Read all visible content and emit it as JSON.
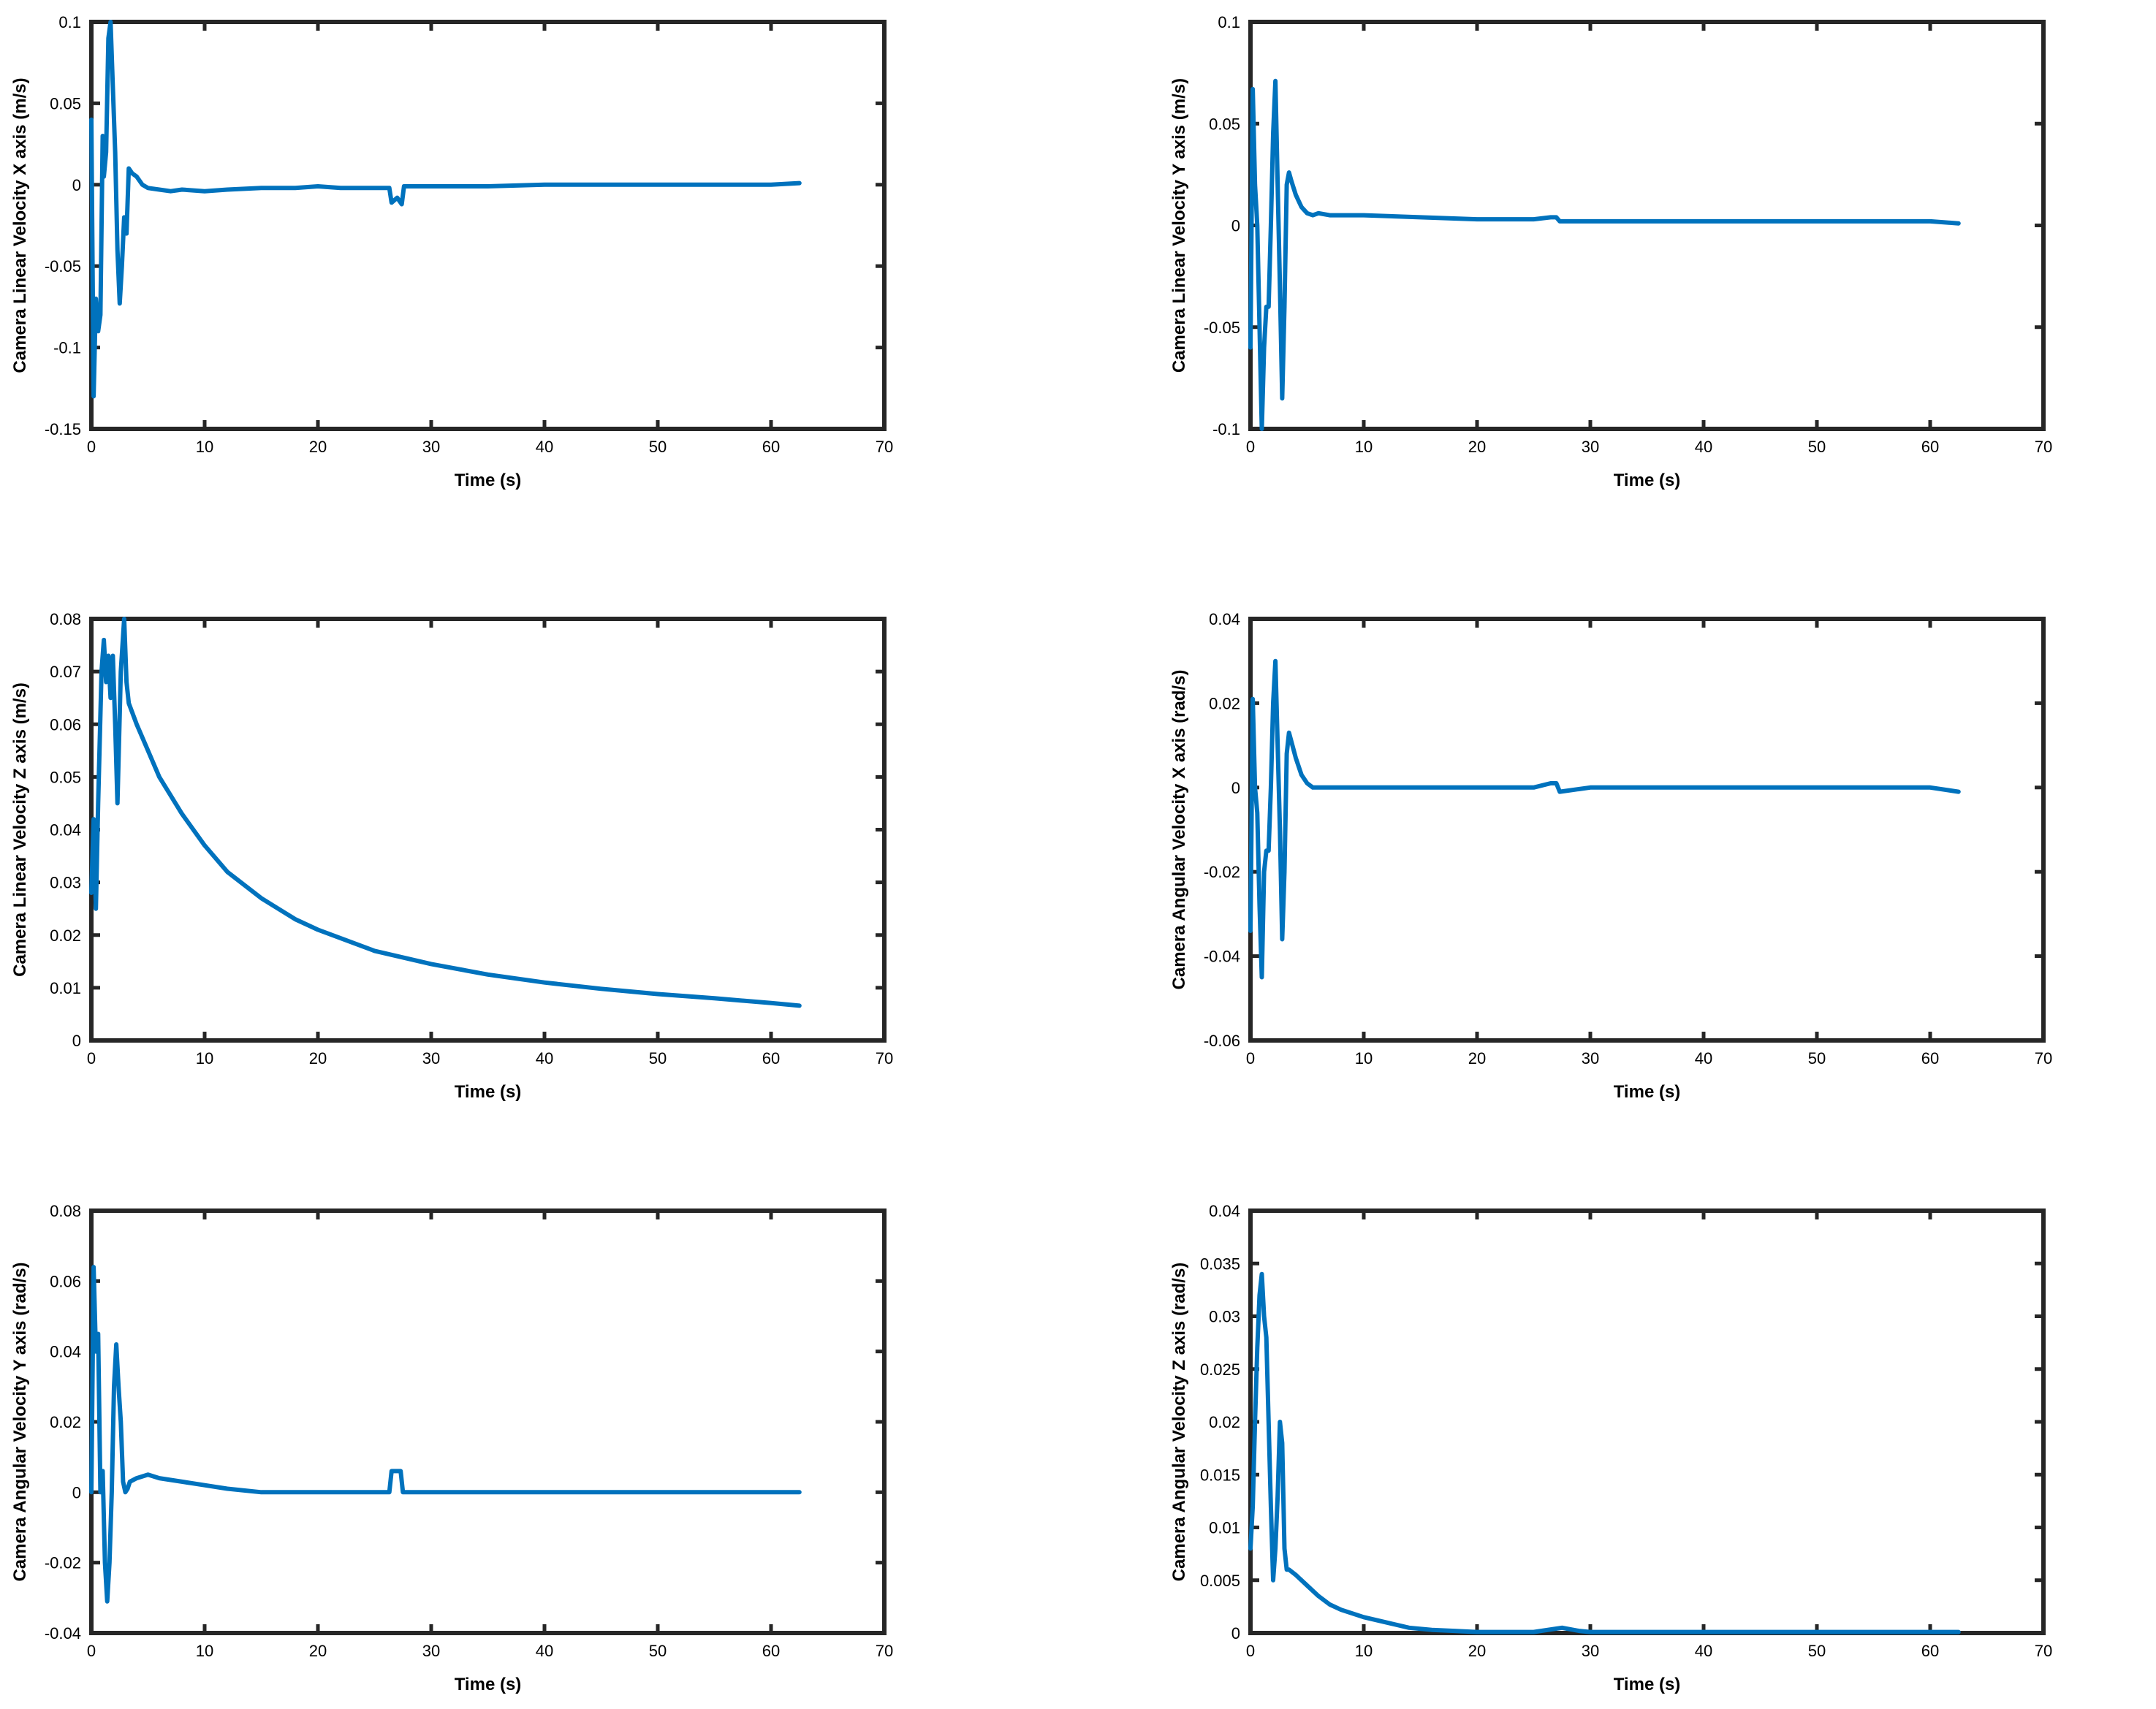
{
  "chart_data": [
    {
      "type": "line",
      "xlabel": "Time (s)",
      "ylabel": "Camera Linear Velocity X axis  (m/s)",
      "xlim": [
        0,
        70
      ],
      "ylim": [
        -0.15,
        0.1
      ],
      "xticks": [
        0,
        10,
        20,
        30,
        40,
        50,
        60,
        70
      ],
      "xtick_labels": [
        "0",
        "10",
        "20",
        "30",
        "40",
        "50",
        "60",
        "70"
      ],
      "yticks": [
        -0.15,
        -0.1,
        -0.05,
        0,
        0.05,
        0.1
      ],
      "ytick_labels": [
        "-0.15",
        "-0.1",
        "-0.05",
        "0",
        "0.05",
        "0.1"
      ],
      "grid": false,
      "color": "#0072BD",
      "series": [
        {
          "x": [
            0,
            0.2,
            0.4,
            0.6,
            0.8,
            1.0,
            1.1,
            1.3,
            1.5,
            1.7,
            1.9,
            2.1,
            2.3,
            2.5,
            2.7,
            2.9,
            3.1,
            3.3,
            3.6,
            4,
            4.5,
            5,
            6,
            7,
            8,
            10,
            12,
            15,
            18,
            20,
            22,
            25,
            26.3,
            26.5,
            27,
            27.4,
            27.6,
            30,
            35,
            40,
            45,
            50,
            55,
            60,
            62.5
          ],
          "y": [
            0.04,
            -0.13,
            -0.07,
            -0.09,
            -0.08,
            0.03,
            0.005,
            0.02,
            0.09,
            0.1,
            0.06,
            0.02,
            -0.04,
            -0.073,
            -0.05,
            -0.02,
            -0.03,
            0.01,
            0.007,
            0.005,
            0.0,
            -0.002,
            -0.003,
            -0.004,
            -0.003,
            -0.004,
            -0.003,
            -0.002,
            -0.002,
            -0.001,
            -0.002,
            -0.002,
            -0.002,
            -0.011,
            -0.008,
            -0.012,
            -0.001,
            -0.001,
            -0.001,
            0.0,
            0.0,
            0.0,
            0.0,
            0.0,
            0.001
          ]
        }
      ]
    },
    {
      "type": "line",
      "xlabel": "Time (s)",
      "ylabel": "Camera Linear Velocity Y axis (m/s)",
      "xlim": [
        0,
        70
      ],
      "ylim": [
        -0.1,
        0.1
      ],
      "xticks": [
        0,
        10,
        20,
        30,
        40,
        50,
        60,
        70
      ],
      "xtick_labels": [
        "0",
        "10",
        "20",
        "30",
        "40",
        "50",
        "60",
        "70"
      ],
      "yticks": [
        -0.1,
        -0.05,
        0,
        0.05,
        0.1
      ],
      "ytick_labels": [
        "-0.1",
        "-0.05",
        "0",
        "0.05",
        "0.1"
      ],
      "grid": false,
      "color": "#0072BD",
      "series": [
        {
          "x": [
            0,
            0.2,
            0.4,
            0.6,
            0.8,
            1.0,
            1.2,
            1.4,
            1.6,
            1.8,
            2.0,
            2.2,
            2.4,
            2.6,
            2.8,
            3.0,
            3.2,
            3.4,
            3.6,
            4.0,
            4.5,
            5.0,
            5.5,
            6,
            7,
            8,
            10,
            15,
            20,
            25,
            26.5,
            27,
            27.3,
            30,
            35,
            40,
            45,
            50,
            55,
            60,
            62.5
          ],
          "y": [
            -0.06,
            0.067,
            0.02,
            0.0,
            -0.05,
            -0.1,
            -0.06,
            -0.04,
            -0.04,
            0.0,
            0.045,
            0.071,
            0.02,
            -0.03,
            -0.085,
            -0.04,
            0.02,
            0.026,
            0.022,
            0.015,
            0.009,
            0.006,
            0.005,
            0.006,
            0.005,
            0.005,
            0.005,
            0.004,
            0.003,
            0.003,
            0.004,
            0.004,
            0.002,
            0.002,
            0.002,
            0.002,
            0.002,
            0.002,
            0.002,
            0.002,
            0.001
          ]
        }
      ]
    },
    {
      "type": "line",
      "xlabel": "Time (s)",
      "ylabel": "Camera Linear Velocity Z axis (m/s)",
      "xlim": [
        0,
        70
      ],
      "ylim": [
        0,
        0.08
      ],
      "xticks": [
        0,
        10,
        20,
        30,
        40,
        50,
        60,
        70
      ],
      "xtick_labels": [
        "0",
        "10",
        "20",
        "30",
        "40",
        "50",
        "60",
        "70"
      ],
      "yticks": [
        0,
        0.01,
        0.02,
        0.03,
        0.04,
        0.05,
        0.06,
        0.07,
        0.08
      ],
      "ytick_labels": [
        "0",
        "0.01",
        "0.02",
        "0.03",
        "0.04",
        "0.05",
        "0.06",
        "0.07",
        "0.08"
      ],
      "grid": false,
      "color": "#0072BD",
      "series": [
        {
          "x": [
            0,
            0.2,
            0.4,
            0.6,
            0.9,
            1.1,
            1.3,
            1.5,
            1.7,
            1.9,
            2.1,
            2.3,
            2.6,
            2.9,
            3.1,
            3.3,
            4,
            5,
            6,
            8,
            10,
            12,
            15,
            18,
            20,
            25,
            30,
            35,
            40,
            45,
            50,
            55,
            60,
            62.5
          ],
          "y": [
            0.028,
            0.042,
            0.025,
            0.045,
            0.07,
            0.076,
            0.068,
            0.073,
            0.065,
            0.073,
            0.06,
            0.045,
            0.07,
            0.08,
            0.068,
            0.064,
            0.06,
            0.055,
            0.05,
            0.043,
            0.037,
            0.032,
            0.027,
            0.023,
            0.021,
            0.017,
            0.0145,
            0.0125,
            0.011,
            0.0098,
            0.0088,
            0.008,
            0.0071,
            0.0066
          ]
        }
      ]
    },
    {
      "type": "line",
      "xlabel": "Time (s)",
      "ylabel": "Camera Angular Velocity X axis (rad/s)",
      "xlim": [
        0,
        70
      ],
      "ylim": [
        -0.06,
        0.04
      ],
      "xticks": [
        0,
        10,
        20,
        30,
        40,
        50,
        60,
        70
      ],
      "xtick_labels": [
        "0",
        "10",
        "20",
        "30",
        "40",
        "50",
        "60",
        "70"
      ],
      "yticks": [
        -0.06,
        -0.04,
        -0.02,
        0,
        0.02,
        0.04
      ],
      "ytick_labels": [
        "-0.06",
        "-0.04",
        "-0.02",
        "0",
        "0.02",
        "0.04"
      ],
      "grid": false,
      "color": "#0072BD",
      "series": [
        {
          "x": [
            0,
            0.2,
            0.4,
            0.6,
            0.8,
            1.0,
            1.2,
            1.4,
            1.6,
            1.8,
            2.0,
            2.2,
            2.4,
            2.6,
            2.8,
            3.0,
            3.2,
            3.4,
            3.6,
            4.0,
            4.5,
            5.0,
            5.5,
            6,
            8,
            10,
            15,
            20,
            25,
            26.5,
            27,
            27.3,
            30,
            35,
            40,
            45,
            50,
            55,
            60,
            62.5
          ],
          "y": [
            -0.034,
            0.021,
            0.0,
            -0.006,
            -0.028,
            -0.045,
            -0.02,
            -0.015,
            -0.015,
            0.0,
            0.02,
            0.03,
            0.01,
            -0.01,
            -0.036,
            -0.02,
            0.008,
            0.013,
            0.011,
            0.007,
            0.003,
            0.001,
            0.0,
            0.0,
            0.0,
            0.0,
            0.0,
            0.0,
            0.0,
            0.001,
            0.001,
            -0.001,
            0.0,
            0.0,
            0.0,
            0.0,
            0.0,
            0.0,
            0.0,
            -0.001
          ]
        }
      ]
    },
    {
      "type": "line",
      "xlabel": "Time (s)",
      "ylabel": "Camera Angular Velocity Y axis (rad/s)",
      "xlim": [
        0,
        70
      ],
      "ylim": [
        -0.04,
        0.08
      ],
      "xticks": [
        0,
        10,
        20,
        30,
        40,
        50,
        60,
        70
      ],
      "xtick_labels": [
        "0",
        "10",
        "20",
        "30",
        "40",
        "50",
        "60",
        "70"
      ],
      "yticks": [
        -0.04,
        -0.02,
        0,
        0.02,
        0.04,
        0.06,
        0.08
      ],
      "ytick_labels": [
        "-0.04",
        "-0.02",
        "0",
        "0.02",
        "0.04",
        "0.06",
        "0.08"
      ],
      "grid": false,
      "color": "#0072BD",
      "series": [
        {
          "x": [
            0,
            0.2,
            0.4,
            0.6,
            0.8,
            1.0,
            1.2,
            1.4,
            1.6,
            1.8,
            2.0,
            2.2,
            2.4,
            2.6,
            2.8,
            3.0,
            3.2,
            3.4,
            4,
            5,
            6,
            8,
            10,
            12,
            15,
            18,
            20,
            25,
            26.3,
            26.5,
            27.3,
            27.5,
            30,
            35,
            40,
            45,
            50,
            55,
            60,
            62.5
          ],
          "y": [
            0.0,
            0.064,
            0.04,
            0.045,
            0.0,
            0.006,
            -0.02,
            -0.031,
            -0.02,
            0.0,
            0.03,
            0.042,
            0.03,
            0.02,
            0.003,
            0.0,
            0.001,
            0.003,
            0.004,
            0.005,
            0.004,
            0.003,
            0.002,
            0.001,
            0.0,
            0.0,
            0.0,
            0.0,
            0.0,
            0.006,
            0.006,
            0.0,
            0.0,
            0.0,
            0.0,
            0.0,
            0.0,
            0.0,
            0.0,
            0.0
          ]
        }
      ]
    },
    {
      "type": "line",
      "xlabel": "Time (s)",
      "ylabel": "Camera Angular Velocity Z axis (rad/s)",
      "xlim": [
        0,
        70
      ],
      "ylim": [
        0,
        0.04
      ],
      "xticks": [
        0,
        10,
        20,
        30,
        40,
        50,
        60,
        70
      ],
      "xtick_labels": [
        "0",
        "10",
        "20",
        "30",
        "40",
        "50",
        "60",
        "70"
      ],
      "yticks": [
        0,
        0.005,
        0.01,
        0.015,
        0.02,
        0.025,
        0.03,
        0.035,
        0.04
      ],
      "ytick_labels": [
        "0",
        "0.005",
        "0.01",
        "0.015",
        "0.02",
        "0.025",
        "0.03",
        "0.035",
        "0.04"
      ],
      "grid": false,
      "color": "#0072BD",
      "series": [
        {
          "x": [
            0,
            0.2,
            0.4,
            0.6,
            0.8,
            1.0,
            1.2,
            1.4,
            1.6,
            1.8,
            2.0,
            2.2,
            2.4,
            2.6,
            2.8,
            3.0,
            3.2,
            3.4,
            4,
            5,
            6,
            7,
            8,
            10,
            12,
            14,
            16,
            18,
            20,
            25,
            27.5,
            29,
            30,
            35,
            40,
            45,
            50,
            55,
            60,
            62.5
          ],
          "y": [
            0.008,
            0.012,
            0.02,
            0.027,
            0.032,
            0.034,
            0.03,
            0.028,
            0.02,
            0.012,
            0.005,
            0.008,
            0.013,
            0.02,
            0.018,
            0.008,
            0.006,
            0.006,
            0.0055,
            0.0045,
            0.0035,
            0.0027,
            0.0022,
            0.0015,
            0.001,
            0.0005,
            0.0003,
            0.0002,
            0.0001,
            0.0001,
            0.0005,
            0.0002,
            0.0001,
            0.0001,
            0.0001,
            0.0001,
            0.0001,
            0.0001,
            0.0001,
            0.0001
          ]
        }
      ]
    }
  ]
}
